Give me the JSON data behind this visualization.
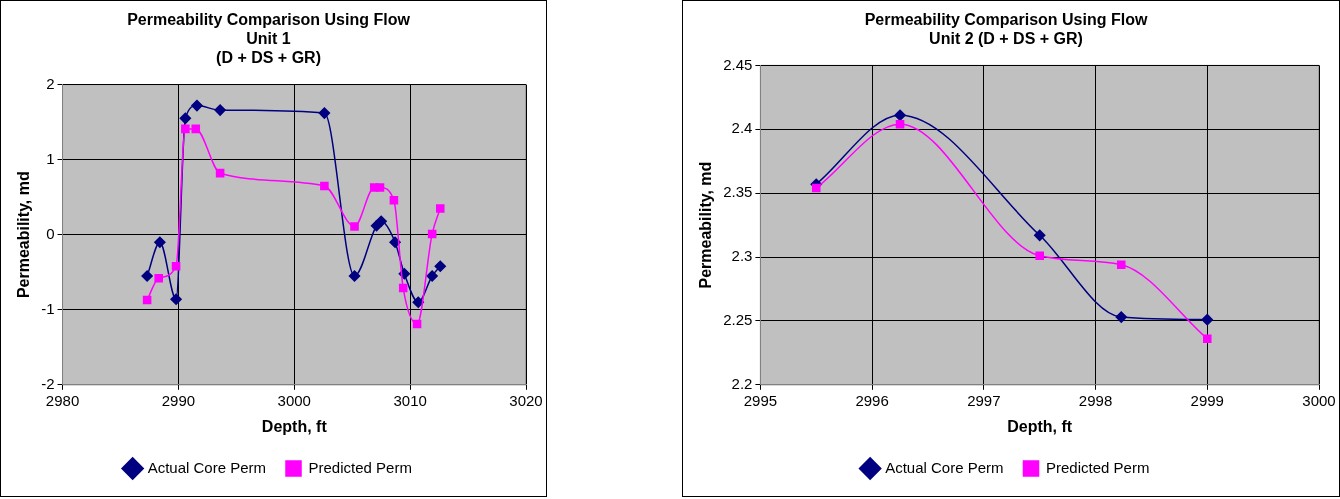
{
  "chart_data": [
    {
      "type": "line",
      "title": "Permeability Comparison Using Flow\nUnit 1\n(D + DS + GR)",
      "xlabel": "Depth, ft",
      "ylabel": "Permeability, md",
      "xlim": [
        2980,
        3020
      ],
      "xticks": [
        2980,
        2990,
        3000,
        3010,
        3020
      ],
      "ylim": [
        -2,
        2
      ],
      "yticks": [
        -2,
        -1,
        0,
        1,
        2
      ],
      "grid": true,
      "legend": "bottom",
      "series": [
        {
          "name": "Actual Core Perm",
          "color": "#000080",
          "marker": "diamond",
          "x": [
            2987.3,
            2988.4,
            2989.8,
            2990.6,
            2991.6,
            2993.6,
            3002.6,
            3005.2,
            3007.1,
            3007.5,
            3008.7,
            3009.5,
            3010.7,
            3011.9,
            3012.6
          ],
          "values": [
            -0.55,
            -0.1,
            -0.86,
            1.55,
            1.72,
            1.66,
            1.62,
            -0.55,
            0.12,
            0.18,
            -0.1,
            -0.52,
            -0.9,
            -0.55,
            -0.42
          ]
        },
        {
          "name": "Predicted Perm",
          "color": "#ff00ff",
          "marker": "square",
          "x": [
            2987.3,
            2988.3,
            2989.8,
            2990.6,
            2991.5,
            2993.6,
            3002.6,
            3005.2,
            3006.9,
            3007.4,
            3008.6,
            3009.4,
            3010.6,
            3011.9,
            3012.6
          ],
          "values": [
            -0.87,
            -0.58,
            -0.42,
            1.41,
            1.41,
            0.82,
            0.65,
            0.11,
            0.63,
            0.63,
            0.46,
            -0.71,
            -1.19,
            0.01,
            0.35
          ]
        }
      ]
    },
    {
      "type": "line",
      "title": "Permeability Comparison Using Flow\nUnit 2 (D + DS + GR)",
      "xlabel": "Depth, ft",
      "ylabel": "Permeability, md",
      "xlim": [
        2995,
        3000
      ],
      "xticks": [
        2995,
        2996,
        2997,
        2998,
        2999,
        3000
      ],
      "ylim": [
        2.2,
        2.45
      ],
      "yticks": [
        2.2,
        2.25,
        2.3,
        2.35,
        2.4,
        2.45
      ],
      "grid": true,
      "legend": "bottom",
      "series": [
        {
          "name": "Actual Core Perm",
          "color": "#000080",
          "marker": "diamond",
          "x": [
            2995.5,
            2996.25,
            2997.5,
            2998.23,
            2999
          ],
          "values": [
            2.357,
            2.411,
            2.317,
            2.253,
            2.251
          ]
        },
        {
          "name": "Predicted Perm",
          "color": "#ff00ff",
          "marker": "square",
          "x": [
            2995.5,
            2996.25,
            2997.5,
            2998.23,
            2999
          ],
          "values": [
            2.354,
            2.404,
            2.301,
            2.294,
            2.236
          ]
        }
      ]
    }
  ]
}
